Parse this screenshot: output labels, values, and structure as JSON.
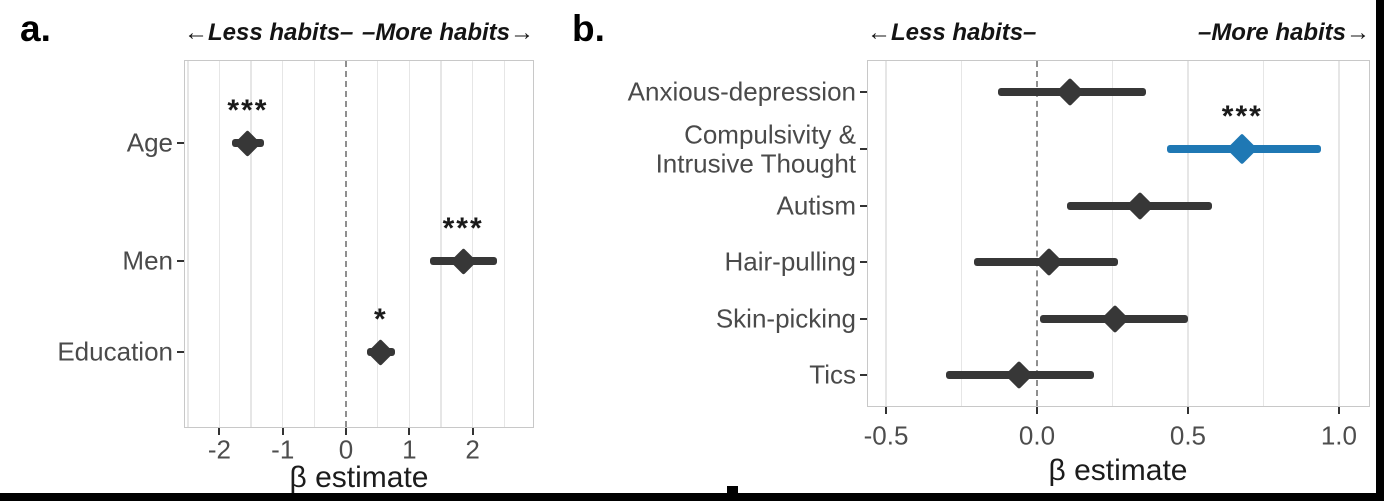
{
  "figure": {
    "background": "#ffffff",
    "frame_color": "#000000",
    "highlight_color": "#1f78b4",
    "point_color": "#373737"
  },
  "chart_data": [
    {
      "type": "forest",
      "panel": "a",
      "panel_label": "a.",
      "header_left": "←Less habits–",
      "header_right": "–More habits→",
      "xlabel": "β estimate",
      "xlim": [
        -2.56,
        2.97
      ],
      "xticks": [
        -2,
        -1,
        0,
        1,
        2
      ],
      "xtick_labels": [
        "-2",
        "-1",
        "0",
        "1",
        "2"
      ],
      "grid_step": 0.5,
      "zero_line": 0,
      "grid": true,
      "legend": false,
      "rows": [
        {
          "label": "Age",
          "estimate": -1.55,
          "ci_low": -1.8,
          "ci_high": -1.3,
          "significance": "***",
          "color": "#373737",
          "highlight": false
        },
        {
          "label": "Men",
          "estimate": 1.85,
          "ci_low": 1.33,
          "ci_high": 2.38,
          "significance": "***",
          "color": "#373737",
          "highlight": false
        },
        {
          "label": "Education",
          "estimate": 0.55,
          "ci_low": 0.33,
          "ci_high": 0.77,
          "significance": "*",
          "color": "#373737",
          "highlight": false
        }
      ]
    },
    {
      "type": "forest",
      "panel": "b",
      "panel_label": "b.",
      "header_left": "←Less habits–",
      "header_right": "–More habits→",
      "xlabel": "β estimate",
      "xlim": [
        -0.563,
        1.103
      ],
      "xticks": [
        -0.5,
        0.0,
        0.5,
        1.0
      ],
      "xtick_labels": [
        "-0.5",
        "0.0",
        "0.5",
        "1.0"
      ],
      "grid_step": 0.25,
      "zero_line": 0,
      "grid": true,
      "legend": false,
      "rows": [
        {
          "label": "Anxious-depression",
          "estimate": 0.11,
          "ci_low": -0.13,
          "ci_high": 0.36,
          "significance": "",
          "color": "#373737",
          "highlight": false
        },
        {
          "label": "Compulsivity &\nIntrusive Thought",
          "estimate": 0.68,
          "ci_low": 0.43,
          "ci_high": 0.94,
          "significance": "***",
          "color": "#1f78b4",
          "highlight": true
        },
        {
          "label": "Autism",
          "estimate": 0.34,
          "ci_low": 0.1,
          "ci_high": 0.58,
          "significance": "",
          "color": "#373737",
          "highlight": false
        },
        {
          "label": "Hair-pulling",
          "estimate": 0.04,
          "ci_low": -0.21,
          "ci_high": 0.27,
          "significance": "",
          "color": "#373737",
          "highlight": false
        },
        {
          "label": "Skin-picking",
          "estimate": 0.26,
          "ci_low": 0.01,
          "ci_high": 0.5,
          "significance": "",
          "color": "#373737",
          "highlight": false
        },
        {
          "label": "Tics",
          "estimate": -0.06,
          "ci_low": -0.3,
          "ci_high": 0.19,
          "significance": "",
          "color": "#373737",
          "highlight": false
        }
      ]
    }
  ]
}
